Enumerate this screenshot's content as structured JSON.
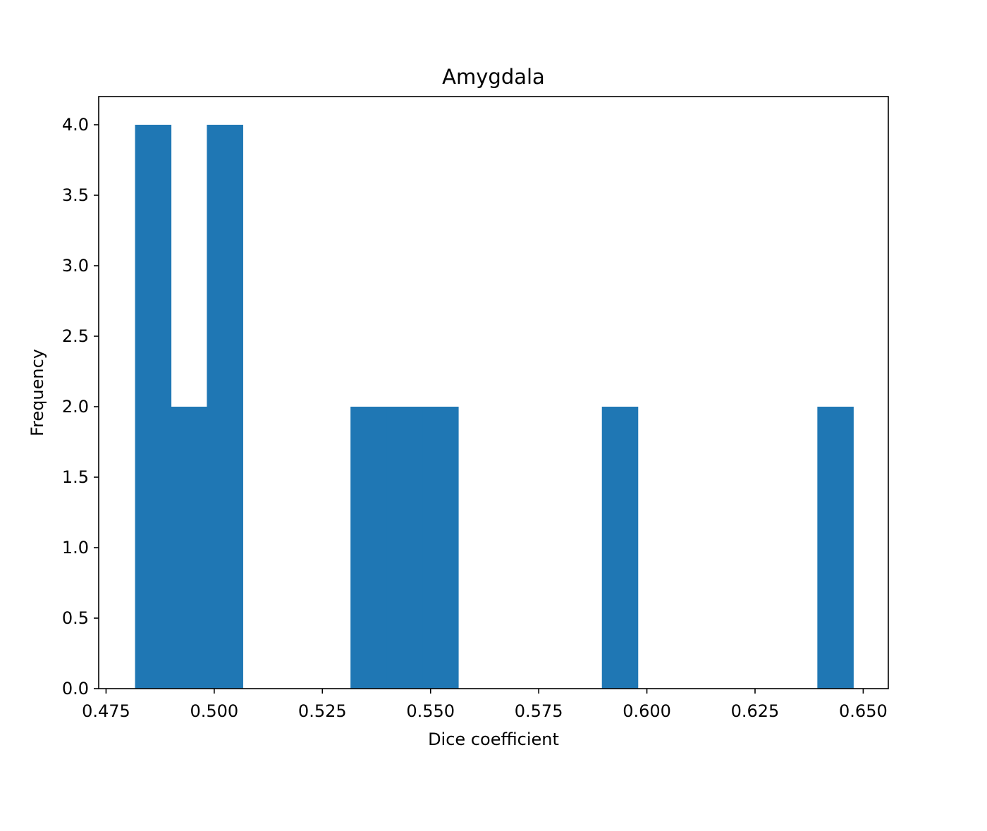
{
  "chart_data": {
    "type": "bar",
    "title": "Amygdala",
    "xlabel": "Dice coefficient",
    "ylabel": "Frequency",
    "xlim": [
      0.4733,
      0.6558
    ],
    "ylim": [
      0,
      4.2
    ],
    "bar_color": "#1f77b4",
    "grid": false,
    "bins": [
      {
        "x0": 0.4817,
        "x1": 0.49,
        "count": 4
      },
      {
        "x0": 0.49,
        "x1": 0.4983,
        "count": 2
      },
      {
        "x0": 0.4983,
        "x1": 0.5066,
        "count": 4
      },
      {
        "x0": 0.5066,
        "x1": 0.5149,
        "count": 0
      },
      {
        "x0": 0.5149,
        "x1": 0.5232,
        "count": 0
      },
      {
        "x0": 0.5232,
        "x1": 0.5315,
        "count": 0
      },
      {
        "x0": 0.5315,
        "x1": 0.5398,
        "count": 2
      },
      {
        "x0": 0.5398,
        "x1": 0.5481,
        "count": 2
      },
      {
        "x0": 0.5481,
        "x1": 0.5564,
        "count": 2
      },
      {
        "x0": 0.5564,
        "x1": 0.5647,
        "count": 0
      },
      {
        "x0": 0.5647,
        "x1": 0.573,
        "count": 0
      },
      {
        "x0": 0.573,
        "x1": 0.5813,
        "count": 0
      },
      {
        "x0": 0.5813,
        "x1": 0.5896,
        "count": 0
      },
      {
        "x0": 0.5896,
        "x1": 0.5979,
        "count": 2
      },
      {
        "x0": 0.5979,
        "x1": 0.6062,
        "count": 0
      },
      {
        "x0": 0.6062,
        "x1": 0.6145,
        "count": 0
      },
      {
        "x0": 0.6145,
        "x1": 0.6228,
        "count": 0
      },
      {
        "x0": 0.6228,
        "x1": 0.6311,
        "count": 0
      },
      {
        "x0": 0.6311,
        "x1": 0.6394,
        "count": 0
      },
      {
        "x0": 0.6394,
        "x1": 0.6477,
        "count": 2
      }
    ],
    "x_ticks": [
      {
        "value": 0.475,
        "label": "0.475"
      },
      {
        "value": 0.5,
        "label": "0.500"
      },
      {
        "value": 0.525,
        "label": "0.525"
      },
      {
        "value": 0.55,
        "label": "0.550"
      },
      {
        "value": 0.575,
        "label": "0.575"
      },
      {
        "value": 0.6,
        "label": "0.600"
      },
      {
        "value": 0.625,
        "label": "0.625"
      },
      {
        "value": 0.65,
        "label": "0.650"
      }
    ],
    "y_ticks": [
      {
        "value": 0.0,
        "label": "0.0"
      },
      {
        "value": 0.5,
        "label": "0.5"
      },
      {
        "value": 1.0,
        "label": "1.0"
      },
      {
        "value": 1.5,
        "label": "1.5"
      },
      {
        "value": 2.0,
        "label": "2.0"
      },
      {
        "value": 2.5,
        "label": "2.5"
      },
      {
        "value": 3.0,
        "label": "3.0"
      },
      {
        "value": 3.5,
        "label": "3.5"
      },
      {
        "value": 4.0,
        "label": "4.0"
      }
    ]
  }
}
